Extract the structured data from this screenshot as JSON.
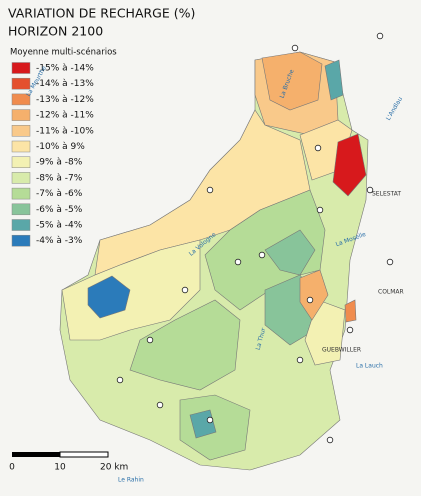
{
  "title": "VARIATION DE RECHARGE (%)",
  "subtitle": "HORIZON 2100",
  "legend": {
    "title": "Moyenne multi-scénarios",
    "items": [
      {
        "label": "-15% à -14%",
        "color": "#d7191c"
      },
      {
        "label": "-14% à -13%",
        "color": "#e4502f"
      },
      {
        "label": "-13% à -12%",
        "color": "#f08c4e"
      },
      {
        "label": "-12% à -11%",
        "color": "#f5b06c"
      },
      {
        "label": "-11% à -10%",
        "color": "#f9c98a"
      },
      {
        "label": "-10% à 9%",
        "color": "#fce4a6"
      },
      {
        "label": "-9% à -8%",
        "color": "#f3f1b3"
      },
      {
        "label": "-8% à -7%",
        "color": "#d8ebab"
      },
      {
        "label": "-7% à -6%",
        "color": "#b5dc97"
      },
      {
        "label": "-6% à -5%",
        "color": "#88c49a"
      },
      {
        "label": "-5% à -4%",
        "color": "#5aa7a8"
      },
      {
        "label": "-4% à -3%",
        "color": "#2b7bba"
      }
    ]
  },
  "scale_bar": {
    "labels": [
      "0",
      "10",
      "20 km"
    ]
  },
  "places": [
    "La Meurthe",
    "La Bruche",
    "L'Andlau",
    "SELESTAT",
    "COLMAR",
    "La Lauch",
    "GUEBWILLER",
    "Le Rahin",
    "La Moselle",
    "La Thur",
    "La Vologne"
  ]
}
